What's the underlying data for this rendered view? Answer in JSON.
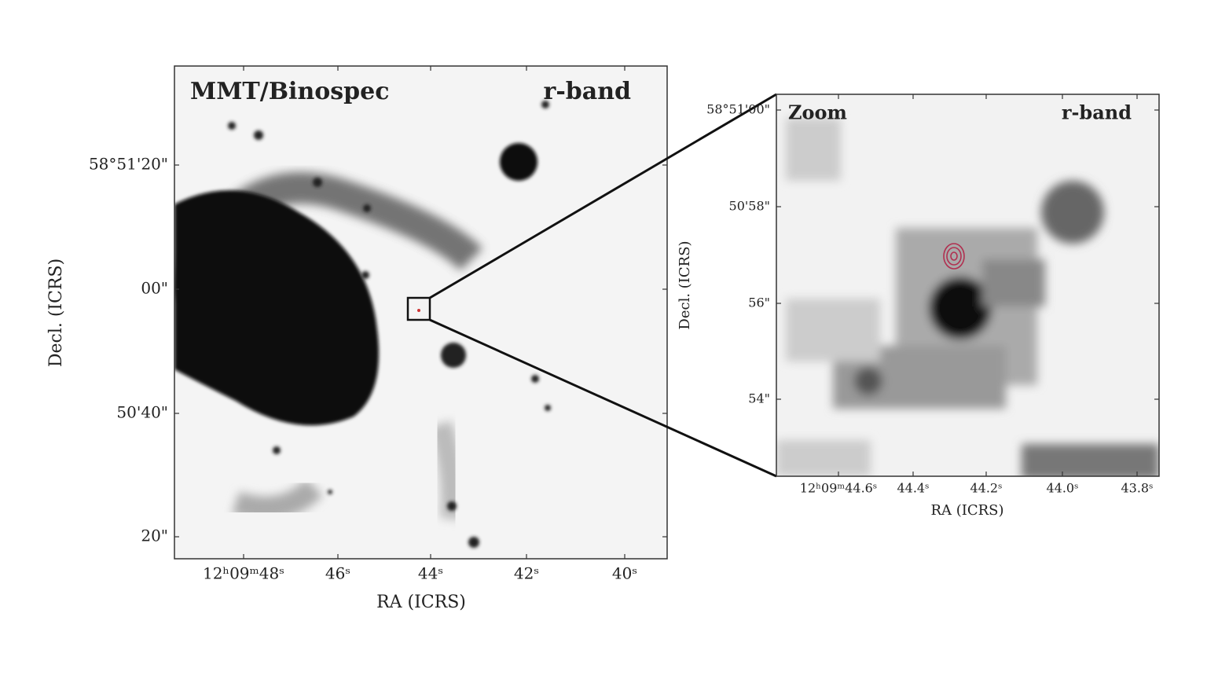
{
  "left_panel": {
    "title": "MMT/Binospec",
    "band": "r-band",
    "y_label": "Decl. (ICRS)",
    "x_label": "RA (ICRS)",
    "y_ticks": [
      "58°51'20\"",
      "00\"",
      "50'40\"",
      "20\""
    ],
    "x_ticks": [
      "12ʰ09ᵐ48ˢ",
      "46ˢ",
      "44ˢ",
      "42ˢ",
      "40ˢ"
    ]
  },
  "right_panel": {
    "title": "Zoom",
    "band": "r-band",
    "y_label": "Decl. (ICRS)",
    "x_label": "RA (ICRS)",
    "y_ticks": [
      "58°51'00\"",
      "50'58\"",
      "56\"",
      "54\""
    ],
    "x_ticks": [
      "12ʰ09ᵐ44.6ˢ",
      "44.4ˢ",
      "44.2ˢ",
      "44.0ˢ",
      "43.8ˢ"
    ]
  }
}
